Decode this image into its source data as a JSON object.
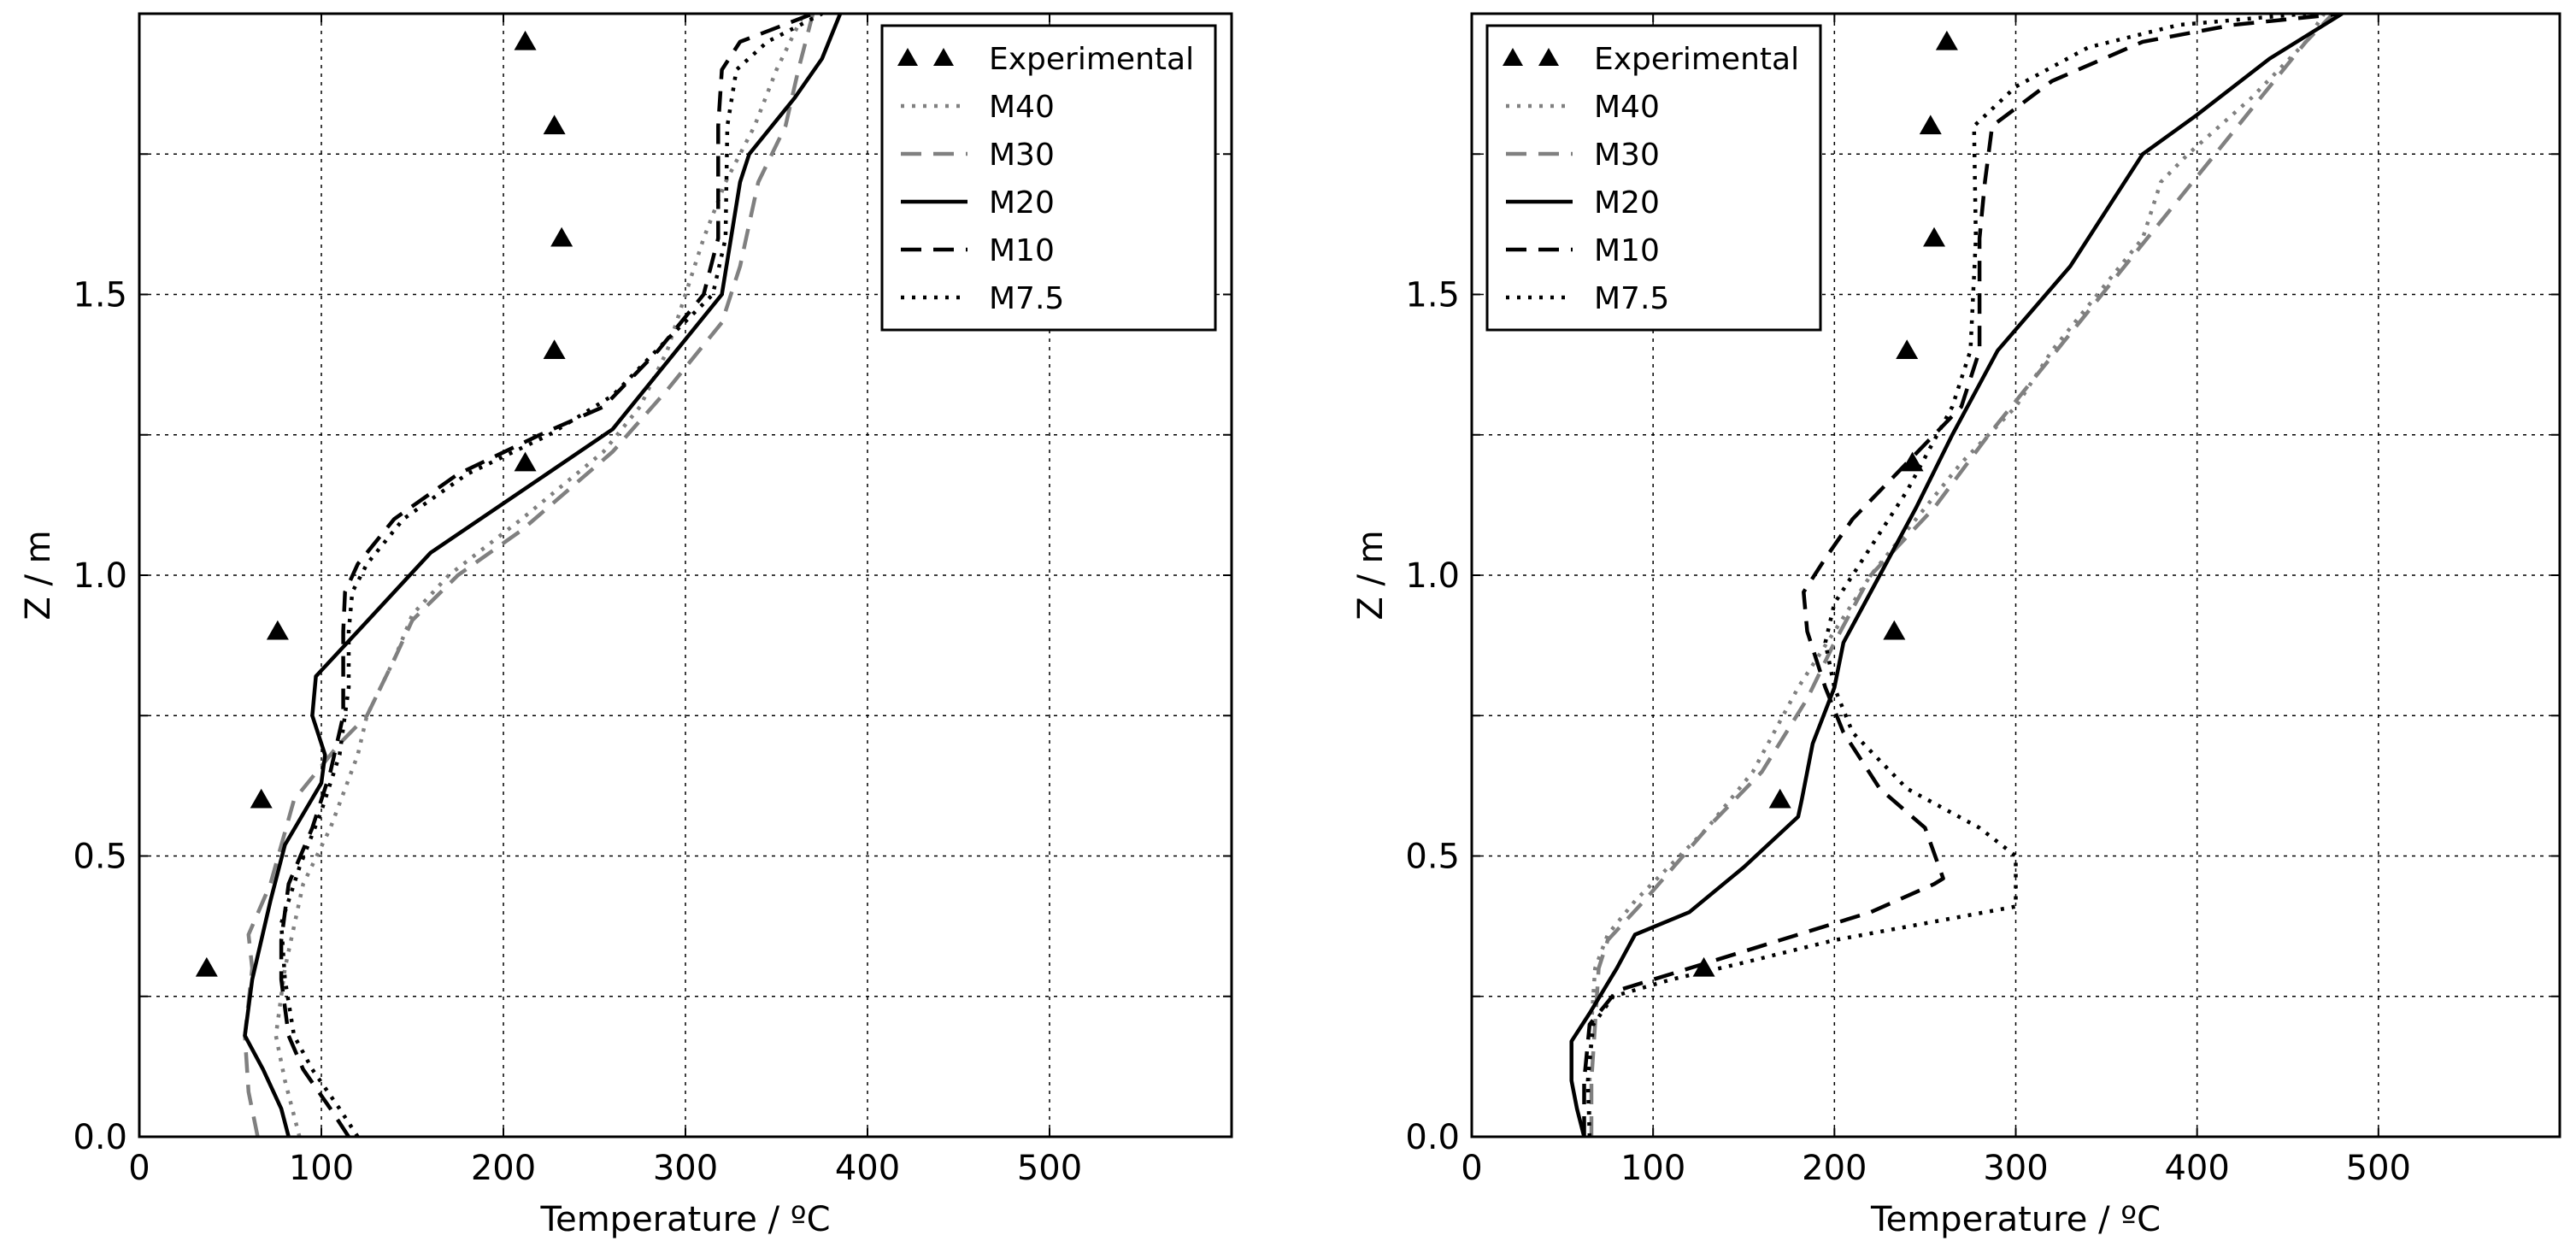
{
  "chart_data": [
    {
      "type": "line",
      "panel": "left",
      "xlabel": "Temperature / ºC",
      "ylabel": "Z / m",
      "xlim": [
        0,
        600
      ],
      "ylim": [
        0,
        2.0
      ],
      "xticks": [
        0,
        100,
        200,
        300,
        400,
        500
      ],
      "xtick_labels": [
        "0",
        "100",
        "200",
        "300",
        "400",
        "500"
      ],
      "yticks": [
        0.0,
        0.5,
        1.0,
        1.5
      ],
      "ytick_labels": [
        "0.0",
        "0.5",
        "1.0",
        "1.5"
      ],
      "x_grid": [
        0,
        100,
        200,
        300,
        400,
        500,
        600
      ],
      "y_grid": [
        0,
        0.25,
        0.5,
        0.75,
        1.0,
        1.25,
        1.5,
        1.75
      ],
      "grid": true,
      "legend_position": "top-right",
      "series": [
        {
          "name": "Experimental",
          "style": "markers",
          "color": "#000000",
          "points": [
            [
              37,
              0.3
            ],
            [
              67,
              0.6
            ],
            [
              76,
              0.9
            ],
            [
              212,
              1.2
            ],
            [
              228,
              1.4
            ],
            [
              232,
              1.6
            ],
            [
              228,
              1.8
            ],
            [
              212,
              1.95
            ]
          ]
        },
        {
          "name": "M40",
          "style": "dotted",
          "color": "#808080",
          "points": [
            [
              88,
              0
            ],
            [
              80,
              0.1
            ],
            [
              75,
              0.18
            ],
            [
              80,
              0.3
            ],
            [
              90,
              0.45
            ],
            [
              105,
              0.55
            ],
            [
              120,
              0.68
            ],
            [
              125,
              0.75
            ],
            [
              140,
              0.85
            ],
            [
              150,
              0.93
            ],
            [
              170,
              1.0
            ],
            [
              210,
              1.1
            ],
            [
              255,
              1.22
            ],
            [
              275,
              1.3
            ],
            [
              290,
              1.4
            ],
            [
              300,
              1.5
            ],
            [
              310,
              1.6
            ],
            [
              322,
              1.7
            ],
            [
              338,
              1.8
            ],
            [
              350,
              1.9
            ],
            [
              365,
              2.0
            ]
          ]
        },
        {
          "name": "M30",
          "style": "dashed",
          "color": "#808080",
          "points": [
            [
              65,
              0
            ],
            [
              60,
              0.08
            ],
            [
              58,
              0.18
            ],
            [
              62,
              0.3
            ],
            [
              60,
              0.36
            ],
            [
              72,
              0.45
            ],
            [
              85,
              0.6
            ],
            [
              110,
              0.7
            ],
            [
              125,
              0.75
            ],
            [
              140,
              0.85
            ],
            [
              150,
              0.92
            ],
            [
              175,
              1.0
            ],
            [
              210,
              1.08
            ],
            [
              260,
              1.22
            ],
            [
              290,
              1.33
            ],
            [
              320,
              1.45
            ],
            [
              330,
              1.55
            ],
            [
              340,
              1.7
            ],
            [
              355,
              1.8
            ],
            [
              362,
              1.9
            ],
            [
              370,
              2.0
            ]
          ]
        },
        {
          "name": "M20",
          "style": "solid",
          "color": "#000000",
          "points": [
            [
              82,
              0
            ],
            [
              78,
              0.05
            ],
            [
              68,
              0.12
            ],
            [
              58,
              0.18
            ],
            [
              62,
              0.28
            ],
            [
              72,
              0.42
            ],
            [
              80,
              0.52
            ],
            [
              100,
              0.63
            ],
            [
              102,
              0.68
            ],
            [
              95,
              0.75
            ],
            [
              97,
              0.82
            ],
            [
              120,
              0.9
            ],
            [
              160,
              1.04
            ],
            [
              210,
              1.15
            ],
            [
              260,
              1.26
            ],
            [
              295,
              1.4
            ],
            [
              320,
              1.5
            ],
            [
              330,
              1.7
            ],
            [
              335,
              1.75
            ],
            [
              360,
              1.85
            ],
            [
              375,
              1.92
            ],
            [
              385,
              2.0
            ]
          ]
        },
        {
          "name": "M10",
          "style": "dashed",
          "color": "#000000",
          "points": [
            [
              115,
              0
            ],
            [
              105,
              0.05
            ],
            [
              90,
              0.12
            ],
            [
              82,
              0.18
            ],
            [
              78,
              0.28
            ],
            [
              78,
              0.35
            ],
            [
              82,
              0.45
            ],
            [
              95,
              0.55
            ],
            [
              105,
              0.65
            ],
            [
              112,
              0.75
            ],
            [
              112,
              0.9
            ],
            [
              113,
              0.97
            ],
            [
              120,
              1.02
            ],
            [
              140,
              1.1
            ],
            [
              175,
              1.18
            ],
            [
              220,
              1.25
            ],
            [
              255,
              1.3
            ],
            [
              285,
              1.4
            ],
            [
              310,
              1.5
            ],
            [
              318,
              1.6
            ],
            [
              318,
              1.8
            ],
            [
              320,
              1.9
            ],
            [
              330,
              1.95
            ],
            [
              370,
              2.0
            ]
          ]
        },
        {
          "name": "M7.5",
          "style": "dotted",
          "color": "#000000",
          "points": [
            [
              120,
              0
            ],
            [
              110,
              0.05
            ],
            [
              95,
              0.12
            ],
            [
              85,
              0.18
            ],
            [
              80,
              0.28
            ],
            [
              78,
              0.38
            ],
            [
              88,
              0.48
            ],
            [
              100,
              0.58
            ],
            [
              110,
              0.68
            ],
            [
              115,
              0.8
            ],
            [
              115,
              0.9
            ],
            [
              117,
              0.97
            ],
            [
              125,
              1.02
            ],
            [
              145,
              1.1
            ],
            [
              180,
              1.18
            ],
            [
              225,
              1.25
            ],
            [
              260,
              1.32
            ],
            [
              290,
              1.42
            ],
            [
              315,
              1.5
            ],
            [
              322,
              1.6
            ],
            [
              323,
              1.8
            ],
            [
              328,
              1.9
            ],
            [
              345,
              1.95
            ],
            [
              375,
              2.0
            ]
          ]
        }
      ]
    },
    {
      "type": "line",
      "panel": "right",
      "xlabel": "Temperature / ºC",
      "ylabel": "Z / m",
      "xlim": [
        0,
        600
      ],
      "ylim": [
        0,
        2.0
      ],
      "xticks": [
        0,
        100,
        200,
        300,
        400,
        500
      ],
      "xtick_labels": [
        "0",
        "100",
        "200",
        "300",
        "400",
        "500"
      ],
      "yticks": [
        0.0,
        0.5,
        1.0,
        1.5
      ],
      "ytick_labels": [
        "0.0",
        "0.5",
        "1.0",
        "1.5"
      ],
      "x_grid": [
        0,
        100,
        200,
        300,
        400,
        500,
        600
      ],
      "y_grid": [
        0,
        0.25,
        0.5,
        0.75,
        1.0,
        1.25,
        1.5,
        1.75
      ],
      "grid": true,
      "legend_position": "top-left",
      "series": [
        {
          "name": "Experimental",
          "style": "markers",
          "color": "#000000",
          "points": [
            [
              128,
              0.3
            ],
            [
              170,
              0.6
            ],
            [
              233,
              0.9
            ],
            [
              243,
              1.2
            ],
            [
              240,
              1.4
            ],
            [
              255,
              1.6
            ],
            [
              253,
              1.8
            ],
            [
              262,
              1.95
            ]
          ]
        },
        {
          "name": "M40",
          "style": "dotted",
          "color": "#808080",
          "points": [
            [
              65,
              0
            ],
            [
              65,
              0.1
            ],
            [
              66,
              0.2
            ],
            [
              68,
              0.3
            ],
            [
              75,
              0.36
            ],
            [
              90,
              0.42
            ],
            [
              130,
              0.55
            ],
            [
              155,
              0.65
            ],
            [
              180,
              0.8
            ],
            [
              200,
              0.9
            ],
            [
              220,
              1.0
            ],
            [
              245,
              1.1
            ],
            [
              270,
              1.2
            ],
            [
              300,
              1.3
            ],
            [
              320,
              1.4
            ],
            [
              345,
              1.5
            ],
            [
              370,
              1.6
            ],
            [
              380,
              1.7
            ],
            [
              395,
              1.75
            ],
            [
              430,
              1.85
            ],
            [
              460,
              1.95
            ],
            [
              470,
              2.0
            ]
          ]
        },
        {
          "name": "M30",
          "style": "dashed",
          "color": "#808080",
          "points": [
            [
              66,
              0
            ],
            [
              66,
              0.1
            ],
            [
              68,
              0.2
            ],
            [
              70,
              0.3
            ],
            [
              75,
              0.35
            ],
            [
              95,
              0.42
            ],
            [
              130,
              0.55
            ],
            [
              160,
              0.65
            ],
            [
              185,
              0.78
            ],
            [
              200,
              0.88
            ],
            [
              220,
              1.0
            ],
            [
              255,
              1.12
            ],
            [
              285,
              1.25
            ],
            [
              310,
              1.35
            ],
            [
              335,
              1.45
            ],
            [
              360,
              1.55
            ],
            [
              385,
              1.65
            ],
            [
              410,
              1.75
            ],
            [
              435,
              1.85
            ],
            [
              460,
              1.95
            ],
            [
              475,
              2.0
            ]
          ]
        },
        {
          "name": "M20",
          "style": "solid",
          "color": "#000000",
          "points": [
            [
              62,
              0
            ],
            [
              58,
              0.05
            ],
            [
              55,
              0.1
            ],
            [
              55,
              0.17
            ],
            [
              65,
              0.22
            ],
            [
              80,
              0.3
            ],
            [
              90,
              0.36
            ],
            [
              120,
              0.4
            ],
            [
              150,
              0.48
            ],
            [
              180,
              0.57
            ],
            [
              182,
              0.6
            ],
            [
              188,
              0.7
            ],
            [
              200,
              0.8
            ],
            [
              205,
              0.88
            ],
            [
              225,
              1.0
            ],
            [
              245,
              1.12
            ],
            [
              265,
              1.25
            ],
            [
              290,
              1.4
            ],
            [
              330,
              1.55
            ],
            [
              370,
              1.75
            ],
            [
              400,
              1.82
            ],
            [
              440,
              1.92
            ],
            [
              470,
              1.98
            ],
            [
              480,
              2.0
            ]
          ]
        },
        {
          "name": "M10",
          "style": "dashed",
          "color": "#000000",
          "points": [
            [
              62,
              0
            ],
            [
              62,
              0.1
            ],
            [
              65,
              0.2
            ],
            [
              80,
              0.26
            ],
            [
              120,
              0.3
            ],
            [
              170,
              0.35
            ],
            [
              220,
              0.4
            ],
            [
              255,
              0.45
            ],
            [
              260,
              0.46
            ],
            [
              250,
              0.55
            ],
            [
              225,
              0.62
            ],
            [
              205,
              0.72
            ],
            [
              195,
              0.8
            ],
            [
              185,
              0.9
            ],
            [
              183,
              0.97
            ],
            [
              195,
              1.03
            ],
            [
              210,
              1.1
            ],
            [
              240,
              1.2
            ],
            [
              270,
              1.3
            ],
            [
              280,
              1.4
            ],
            [
              280,
              1.6
            ],
            [
              283,
              1.7
            ],
            [
              287,
              1.8
            ],
            [
              320,
              1.88
            ],
            [
              370,
              1.95
            ],
            [
              420,
              1.98
            ],
            [
              480,
              2.0
            ]
          ]
        },
        {
          "name": "M7.5",
          "style": "dotted",
          "color": "#000000",
          "points": [
            [
              65,
              0
            ],
            [
              64,
              0.1
            ],
            [
              67,
              0.2
            ],
            [
              78,
              0.25
            ],
            [
              110,
              0.28
            ],
            [
              150,
              0.31
            ],
            [
              200,
              0.35
            ],
            [
              250,
              0.38
            ],
            [
              300,
              0.41
            ],
            [
              300,
              0.5
            ],
            [
              280,
              0.55
            ],
            [
              240,
              0.62
            ],
            [
              210,
              0.72
            ],
            [
              200,
              0.8
            ],
            [
              195,
              0.88
            ],
            [
              200,
              0.95
            ],
            [
              220,
              1.05
            ],
            [
              240,
              1.15
            ],
            [
              265,
              1.3
            ],
            [
              275,
              1.4
            ],
            [
              278,
              1.6
            ],
            [
              277,
              1.8
            ],
            [
              300,
              1.87
            ],
            [
              340,
              1.94
            ],
            [
              390,
              1.98
            ],
            [
              460,
              2.0
            ]
          ]
        }
      ]
    }
  ]
}
